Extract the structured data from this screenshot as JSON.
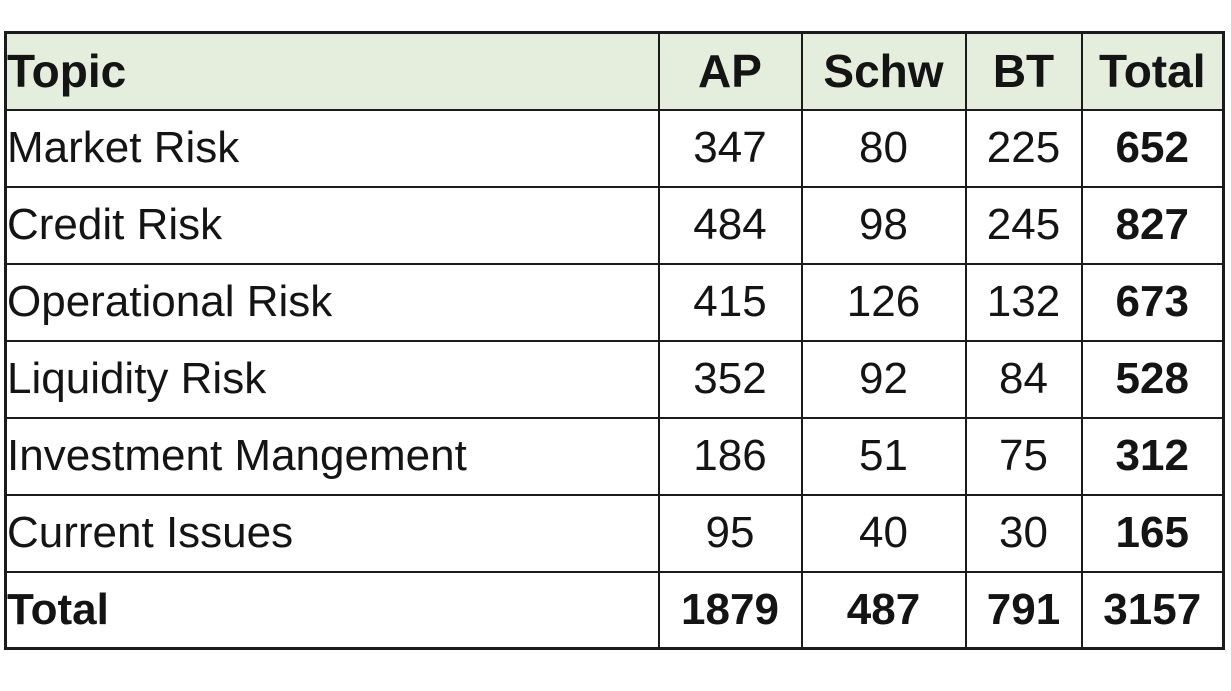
{
  "table": {
    "columns": [
      "Topic",
      "AP",
      "Schw",
      "BT",
      "Total"
    ],
    "rows": [
      {
        "topic": "Market Risk",
        "values": [
          "347",
          "80",
          "225",
          "652"
        ],
        "bold": false
      },
      {
        "topic": "Credit Risk",
        "values": [
          "484",
          "98",
          "245",
          "827"
        ],
        "bold": false
      },
      {
        "topic": "Operational Risk",
        "values": [
          "415",
          "126",
          "132",
          "673"
        ],
        "bold": false
      },
      {
        "topic": "Liquidity Risk",
        "values": [
          "352",
          "92",
          "84",
          "528"
        ],
        "bold": false
      },
      {
        "topic": "Investment Mangement",
        "values": [
          "186",
          "51",
          "75",
          "312"
        ],
        "bold": false
      },
      {
        "topic": "Current Issues",
        "values": [
          "95",
          "40",
          "30",
          "165"
        ],
        "bold": false
      },
      {
        "topic": "Total",
        "values": [
          "1879",
          "487",
          "791",
          "3157"
        ],
        "bold": true
      }
    ],
    "colors": {
      "header_fill": "#e5eedd",
      "border": "#1b1b1b",
      "text": "#141414",
      "background": "#ffffff"
    }
  },
  "chart_data": {
    "type": "table",
    "title": "",
    "columns": [
      "Topic",
      "AP",
      "Schw",
      "BT",
      "Total"
    ],
    "rows": [
      [
        "Market Risk",
        347,
        80,
        225,
        652
      ],
      [
        "Credit Risk",
        484,
        98,
        245,
        827
      ],
      [
        "Operational Risk",
        415,
        126,
        132,
        673
      ],
      [
        "Liquidity Risk",
        352,
        92,
        84,
        528
      ],
      [
        "Investment Mangement",
        186,
        51,
        75,
        312
      ],
      [
        "Current Issues",
        95,
        40,
        30,
        165
      ],
      [
        "Total",
        1879,
        487,
        791,
        3157
      ]
    ]
  }
}
